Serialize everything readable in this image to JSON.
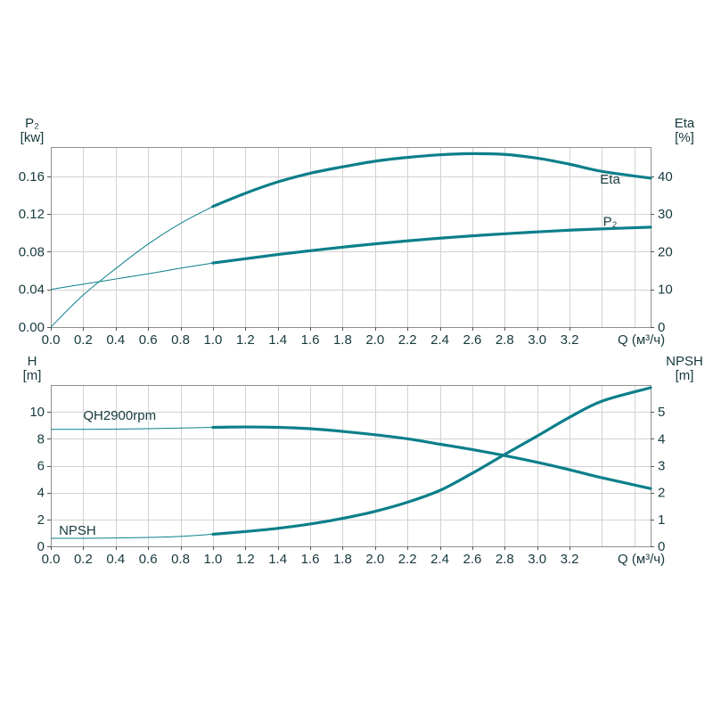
{
  "page": {
    "background": "#ffffff"
  },
  "colors": {
    "curve": "#0c7f8a",
    "grid": "#d2d2d2",
    "frame": "#8f8f8f",
    "tick": "#555555",
    "text": "#16393d"
  },
  "chart_data": [
    {
      "type": "line",
      "name": "p2-eta-chart",
      "title": "",
      "x_label": "Q (м³/ч)",
      "xlim": [
        0,
        3.7
      ],
      "grid": true,
      "x_ticks": {
        "values": [
          0,
          0.2,
          0.4,
          0.6,
          0.8,
          1.0,
          1.2,
          1.4,
          1.6,
          1.8,
          2.0,
          2.2,
          2.4,
          2.6,
          2.8,
          3.0,
          3.2
        ],
        "labels": [
          "0.0",
          "0.2",
          "0.4",
          "0.6",
          "0.8",
          "1.0",
          "1.2",
          "1.4",
          "1.6",
          "1.8",
          "2.0",
          "2.2",
          "2.4",
          "2.6",
          "2.8",
          "3.0",
          "3.2"
        ]
      },
      "left_axis": {
        "title": [
          "P₂",
          "[kw]"
        ],
        "lim": [
          0,
          0.191
        ],
        "ticks": {
          "values": [
            0,
            0.04,
            0.08,
            0.12,
            0.16
          ],
          "labels": [
            "0.00",
            "0.04",
            "0.08",
            "0.12",
            "0.16"
          ]
        }
      },
      "right_axis": {
        "title": [
          "Eta",
          "[%]"
        ],
        "lim": [
          0,
          47.75
        ],
        "ticks": {
          "values": [
            0,
            10,
            20,
            30,
            40
          ],
          "labels": [
            "0",
            "10",
            "20",
            "30",
            "40"
          ]
        }
      },
      "x": [
        0,
        0.2,
        0.4,
        0.6,
        0.8,
        1.0,
        1.2,
        1.4,
        1.6,
        1.8,
        2.0,
        2.2,
        2.4,
        2.6,
        2.8,
        3.0,
        3.2,
        3.4,
        3.7
      ],
      "series": [
        {
          "id": "eta",
          "name": "Eta",
          "axis": "right",
          "thick_from": 1.0,
          "values": [
            0,
            8.5,
            15.5,
            22,
            27.5,
            32,
            35.5,
            38.5,
            40.8,
            42.5,
            44,
            45,
            45.7,
            46,
            45.8,
            44.8,
            43.2,
            41.3,
            39.5
          ]
        },
        {
          "id": "p2",
          "name": "P₂",
          "axis": "left",
          "thick_from": 1.0,
          "values": [
            0.04,
            0.0455,
            0.051,
            0.0565,
            0.0625,
            0.068,
            0.0725,
            0.077,
            0.081,
            0.0848,
            0.0883,
            0.0915,
            0.0943,
            0.0968,
            0.099,
            0.101,
            0.1028,
            0.1042,
            0.106
          ]
        }
      ],
      "annotations": [
        {
          "id": "eta",
          "text": "Eta",
          "x": 3.45,
          "y": 39.2,
          "axis": "right",
          "anchor": "middle"
        },
        {
          "id": "p2",
          "text": "P₂",
          "x": 3.45,
          "y": 0.112,
          "axis": "left",
          "anchor": "middle"
        }
      ]
    },
    {
      "type": "line",
      "name": "h-npsh-chart",
      "title": "",
      "x_label": "Q (м³/ч)",
      "xlim": [
        0,
        3.7
      ],
      "grid": true,
      "x_ticks": {
        "values": [
          0,
          0.2,
          0.4,
          0.6,
          0.8,
          1.0,
          1.2,
          1.4,
          1.6,
          1.8,
          2.0,
          2.2,
          2.4,
          2.6,
          2.8,
          3.0,
          3.2
        ],
        "labels": [
          "0.0",
          "0.2",
          "0.4",
          "0.6",
          "0.8",
          "1.0",
          "1.2",
          "1.4",
          "1.6",
          "1.8",
          "2.0",
          "2.2",
          "2.4",
          "2.6",
          "2.8",
          "3.0",
          "3.2"
        ]
      },
      "left_axis": {
        "title": [
          "H",
          "[m]"
        ],
        "lim": [
          0,
          12
        ],
        "ticks": {
          "values": [
            0,
            2,
            4,
            6,
            8,
            10
          ],
          "labels": [
            "0",
            "2",
            "4",
            "6",
            "8",
            "10"
          ]
        }
      },
      "right_axis": {
        "title": [
          "NPSH",
          "[m]"
        ],
        "lim": [
          0,
          6
        ],
        "ticks": {
          "values": [
            0,
            1,
            2,
            3,
            4,
            5
          ],
          "labels": [
            "0",
            "1",
            "2",
            "3",
            "4",
            "5"
          ]
        }
      },
      "x": [
        0,
        0.2,
        0.4,
        0.6,
        0.8,
        1.0,
        1.2,
        1.4,
        1.6,
        1.8,
        2.0,
        2.2,
        2.4,
        2.6,
        2.8,
        3.0,
        3.2,
        3.4,
        3.7
      ],
      "series": [
        {
          "id": "qh",
          "name": "QH2900rpm",
          "axis": "left",
          "thick_from": 1.0,
          "values": [
            8.7,
            8.7,
            8.72,
            8.75,
            8.8,
            8.85,
            8.88,
            8.85,
            8.75,
            8.55,
            8.3,
            8.0,
            7.6,
            7.2,
            6.75,
            6.25,
            5.7,
            5.1,
            4.3
          ]
        },
        {
          "id": "npsh",
          "name": "NPSH",
          "axis": "right",
          "thick_from": 1.0,
          "values": [
            0.3,
            0.3,
            0.31,
            0.33,
            0.37,
            0.45,
            0.55,
            0.67,
            0.83,
            1.04,
            1.3,
            1.64,
            2.08,
            2.72,
            3.42,
            4.1,
            4.8,
            5.4,
            5.9
          ]
        }
      ],
      "annotations": [
        {
          "id": "qh2900rpm",
          "text": "QH2900rpm",
          "x": 0.2,
          "y": 9.75,
          "axis": "left",
          "anchor": "start"
        },
        {
          "id": "npsh",
          "text": "NPSH",
          "x": 0.05,
          "y": 1.2,
          "axis": "left",
          "anchor": "start"
        }
      ]
    }
  ]
}
